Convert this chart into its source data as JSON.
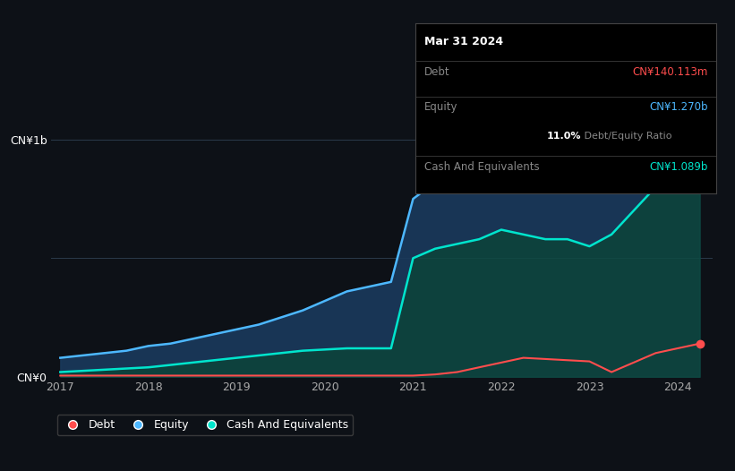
{
  "background_color": "#0d1117",
  "plot_bg_color": "#0d1117",
  "ylabel_top": "CN¥1b",
  "ylabel_zero": "CN¥0",
  "x_ticks": [
    2017,
    2018,
    2019,
    2020,
    2021,
    2022,
    2023,
    2024
  ],
  "equity_color": "#4db8ff",
  "debt_color": "#ff4d4d",
  "cash_color": "#00e5cc",
  "equity_fill": "#1a3a5c",
  "cash_fill": "#0d4a44",
  "debt_label": "Debt",
  "equity_label": "Equity",
  "cash_label": "Cash And Equivalents",
  "tooltip_title": "Mar 31 2024",
  "tooltip_debt_label": "Debt",
  "tooltip_equity_label": "Equity",
  "tooltip_cash_label": "Cash And Equivalents",
  "tooltip_debt_value": "CN¥140.113m",
  "tooltip_equity_value": "CN¥1.270b",
  "tooltip_ratio_bold": "11.0%",
  "tooltip_ratio_plain": " Debt/Equity Ratio",
  "tooltip_cash_value": "CN¥1.089b",
  "years": [
    2017.0,
    2017.25,
    2017.5,
    2017.75,
    2018.0,
    2018.25,
    2018.5,
    2018.75,
    2019.0,
    2019.25,
    2019.5,
    2019.75,
    2020.0,
    2020.25,
    2020.5,
    2020.75,
    2021.0,
    2021.25,
    2021.5,
    2021.75,
    2022.0,
    2022.25,
    2022.5,
    2022.75,
    2023.0,
    2023.25,
    2023.5,
    2023.75,
    2024.0,
    2024.25
  ],
  "equity_values": [
    0.08,
    0.09,
    0.1,
    0.11,
    0.13,
    0.14,
    0.16,
    0.18,
    0.2,
    0.22,
    0.25,
    0.28,
    0.32,
    0.36,
    0.38,
    0.4,
    0.75,
    0.82,
    0.88,
    0.92,
    0.96,
    0.98,
    1.0,
    1.0,
    0.98,
    1.0,
    1.05,
    1.1,
    1.2,
    1.27
  ],
  "cash_values": [
    0.02,
    0.025,
    0.03,
    0.035,
    0.04,
    0.05,
    0.06,
    0.07,
    0.08,
    0.09,
    0.1,
    0.11,
    0.115,
    0.12,
    0.12,
    0.12,
    0.5,
    0.54,
    0.56,
    0.58,
    0.62,
    0.6,
    0.58,
    0.58,
    0.55,
    0.6,
    0.7,
    0.8,
    0.95,
    1.089
  ],
  "debt_values": [
    0.005,
    0.005,
    0.005,
    0.005,
    0.005,
    0.005,
    0.005,
    0.005,
    0.005,
    0.005,
    0.005,
    0.005,
    0.005,
    0.005,
    0.005,
    0.005,
    0.005,
    0.01,
    0.02,
    0.04,
    0.06,
    0.08,
    0.075,
    0.07,
    0.065,
    0.02,
    0.06,
    0.1,
    0.12,
    0.14
  ],
  "ylim": [
    0,
    1.35
  ],
  "xlim": [
    2016.9,
    2024.4
  ]
}
